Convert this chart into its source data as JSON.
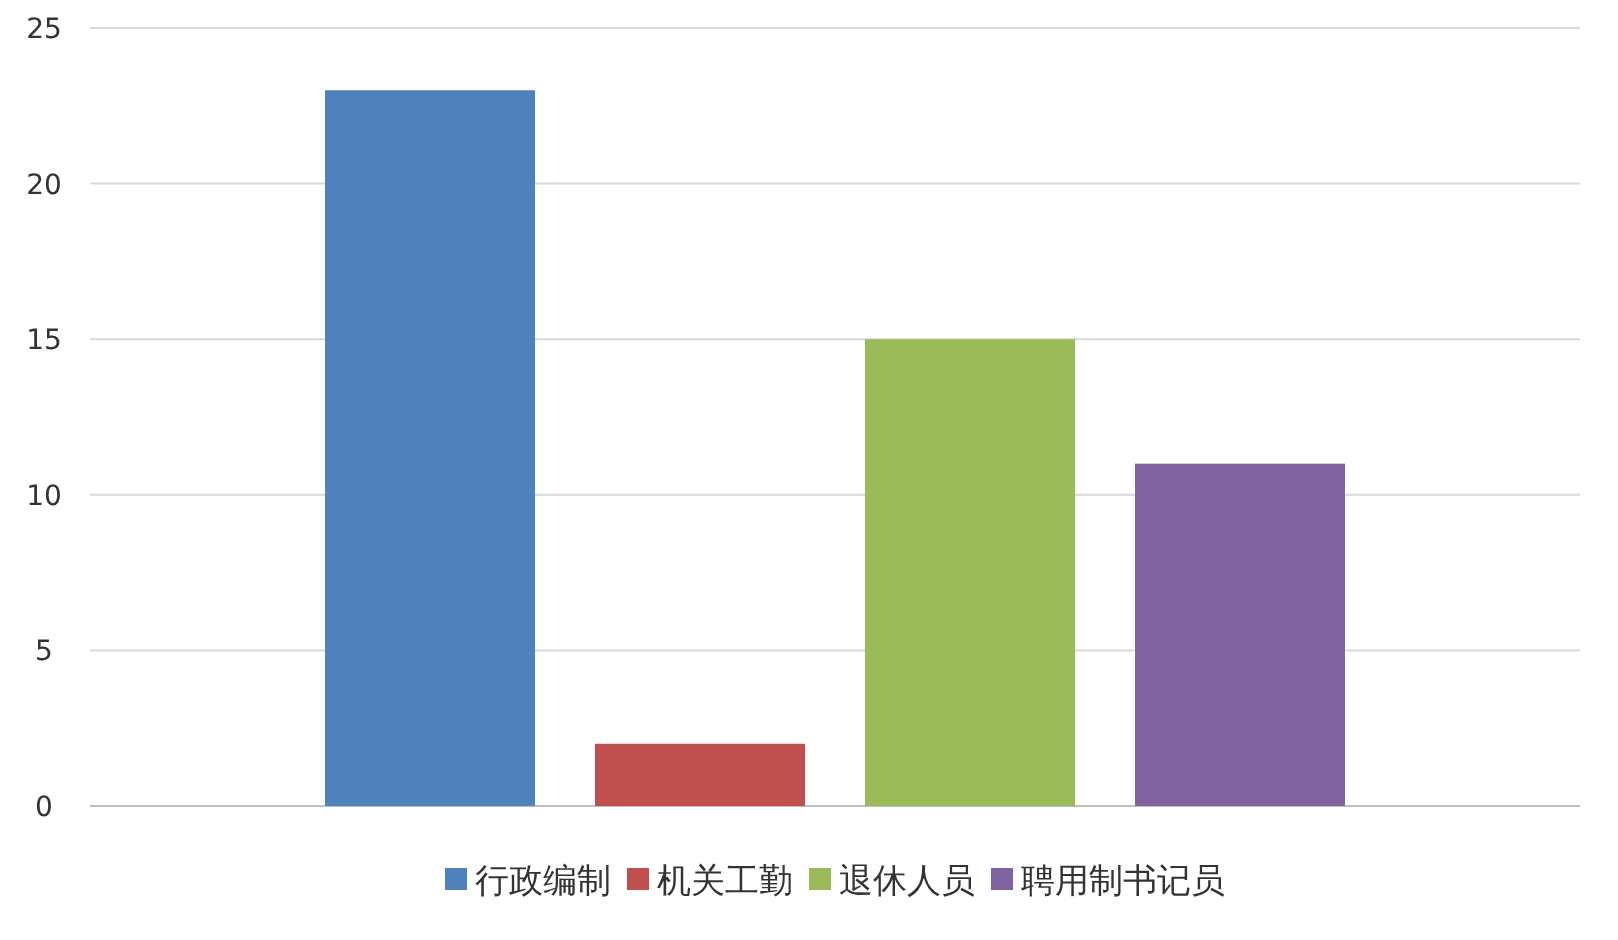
{
  "chart_data": {
    "type": "bar",
    "categories": [
      null
    ],
    "series": [
      {
        "name": "行政编制",
        "color": "#4f81bd",
        "values": [
          23
        ]
      },
      {
        "name": "机关工勤",
        "color": "#c0504d",
        "values": [
          2
        ]
      },
      {
        "name": "退休人员",
        "color": "#9bbb59",
        "values": [
          15
        ]
      },
      {
        "name": "聘用制书记员",
        "color": "#8064a2",
        "values": [
          11
        ]
      }
    ],
    "ylim": [
      0,
      25
    ],
    "yticks": [
      0,
      5,
      10,
      15,
      20,
      25
    ],
    "grid": "y",
    "legend": "bottom"
  }
}
